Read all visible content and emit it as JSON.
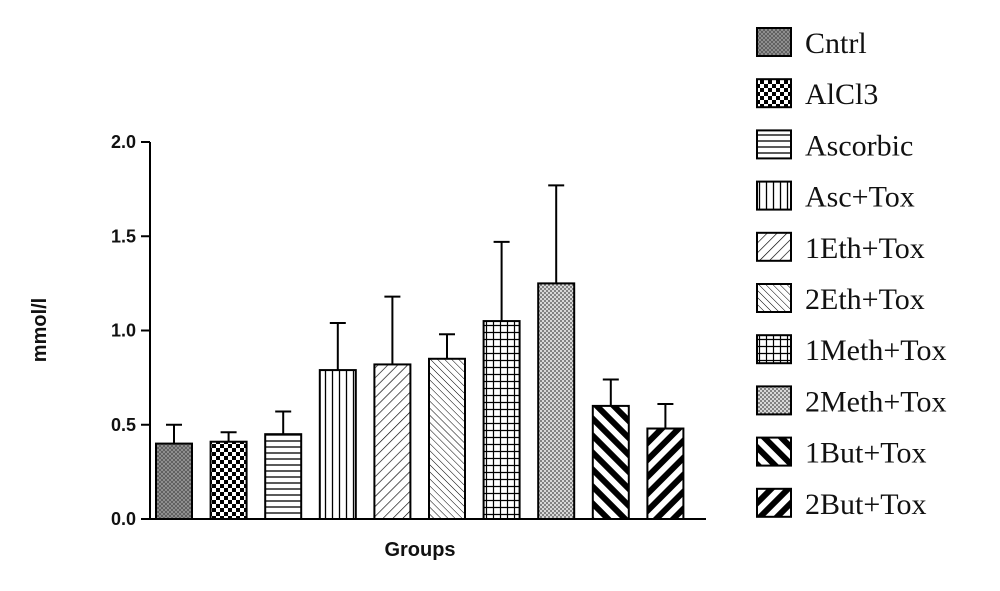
{
  "chart_data": {
    "type": "bar",
    "title": "",
    "xlabel": "Groups",
    "ylabel": "mmol/l",
    "ylim": [
      0,
      2.0
    ],
    "yticks": [
      "0.0",
      "0.5",
      "1.0",
      "1.5",
      "2.0"
    ],
    "grid": false,
    "legend_position": "right",
    "error_bars": true,
    "series": [
      {
        "name": "Cntrl",
        "pattern": "crosshatch-fine",
        "value": 0.4,
        "error": 0.1
      },
      {
        "name": "AlCl3",
        "pattern": "checkerboard",
        "value": 0.41,
        "error": 0.05
      },
      {
        "name": "Ascorbic",
        "pattern": "horizontal-lines",
        "value": 0.45,
        "error": 0.12
      },
      {
        "name": "Asc+Tox",
        "pattern": "vertical-lines",
        "value": 0.79,
        "error": 0.25
      },
      {
        "name": "1Eth+Tox",
        "pattern": "diagonal-up-fine",
        "value": 0.82,
        "error": 0.36
      },
      {
        "name": "2Eth+Tox",
        "pattern": "diagonal-down-fine",
        "value": 0.85,
        "error": 0.13
      },
      {
        "name": "1Meth+Tox",
        "pattern": "grid",
        "value": 1.05,
        "error": 0.42
      },
      {
        "name": "2Meth+Tox",
        "pattern": "dotted",
        "value": 1.25,
        "error": 0.52
      },
      {
        "name": "1But+Tox",
        "pattern": "diagonal-down-bold",
        "value": 0.6,
        "error": 0.14
      },
      {
        "name": "2But+Tox",
        "pattern": "diagonal-up-bold",
        "value": 0.48,
        "error": 0.13
      }
    ]
  }
}
